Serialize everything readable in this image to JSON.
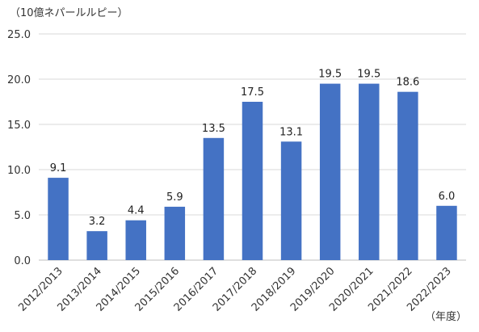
{
  "chart_data": {
    "type": "bar",
    "unit_label": "（10億ネパールルピー）",
    "x_unit_label": "（年度）",
    "categories": [
      "2012/2013",
      "2013/2014",
      "2014/2015",
      "2015/2016",
      "2016/2017",
      "2017/2018",
      "2018/2019",
      "2019/2020",
      "2020/2021",
      "2021/2022",
      "2022/2023"
    ],
    "values": [
      9.1,
      3.2,
      4.4,
      5.9,
      13.5,
      17.5,
      13.1,
      19.5,
      19.5,
      18.6,
      6.0
    ],
    "data_labels": [
      "9.1",
      "3.2",
      "4.4",
      "5.9",
      "13.5",
      "17.5",
      "13.1",
      "19.5",
      "19.5",
      "18.6",
      "6.0"
    ],
    "y_ticks": [
      "0.0",
      "5.0",
      "10.0",
      "15.0",
      "20.0",
      "25.0"
    ],
    "ylim": [
      0,
      25
    ],
    "grid": true,
    "legend": "none",
    "bar_color": "#4472c4"
  }
}
